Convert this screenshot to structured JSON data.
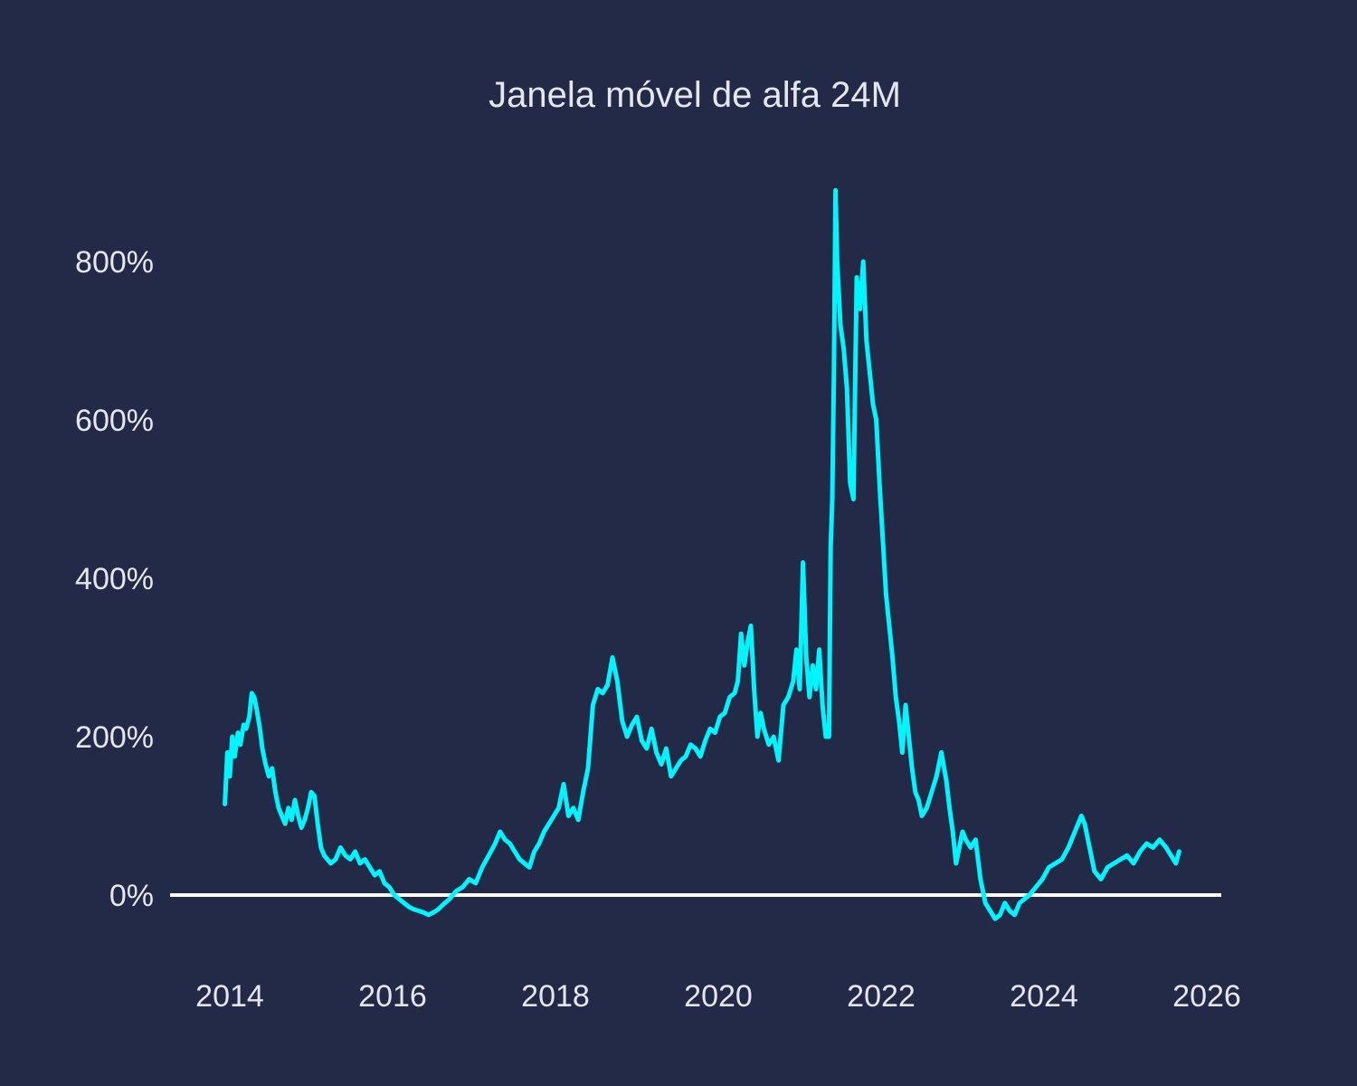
{
  "chart_data": {
    "type": "line",
    "title": "Janela móvel de alfa 24M",
    "xlabel": "",
    "ylabel": "",
    "grid": false,
    "legend": "none",
    "xlim": [
      2013.6,
      2026.1
    ],
    "ylim": [
      -100,
      950
    ],
    "x_ticks": [
      2014,
      2016,
      2018,
      2020,
      2022,
      2024,
      2026
    ],
    "x_tick_labels": [
      "2014",
      "2016",
      "2018",
      "2020",
      "2022",
      "2024",
      "2026"
    ],
    "y_ticks": [
      0,
      200,
      400,
      600,
      800
    ],
    "y_tick_labels": [
      "0%",
      "200%",
      "400%",
      "600%",
      "800%"
    ],
    "reference_line": {
      "y": 0,
      "color": "#ffffff"
    },
    "colors": {
      "background": "#222a47",
      "series": "#00f5ff",
      "text": "#e6e6ee"
    },
    "series": [
      {
        "color": "#00f5ff",
        "x": [
          2013.94,
          2013.97,
          2014.0,
          2014.03,
          2014.06,
          2014.1,
          2014.13,
          2014.17,
          2014.2,
          2014.24,
          2014.27,
          2014.3,
          2014.33,
          2014.37,
          2014.4,
          2014.44,
          2014.48,
          2014.52,
          2014.56,
          2014.6,
          2014.64,
          2014.68,
          2014.72,
          2014.76,
          2014.8,
          2014.84,
          2014.88,
          2014.92,
          2014.96,
          2015.0,
          2015.04,
          2015.08,
          2015.12,
          2015.16,
          2015.2,
          2015.24,
          2015.3,
          2015.36,
          2015.42,
          2015.48,
          2015.54,
          2015.6,
          2015.66,
          2015.72,
          2015.78,
          2015.84,
          2015.9,
          2015.96,
          2016.02,
          2016.08,
          2016.14,
          2016.2,
          2016.26,
          2016.32,
          2016.38,
          2016.44,
          2016.5,
          2016.56,
          2016.62,
          2016.7,
          2016.78,
          2016.86,
          2016.94,
          2017.02,
          2017.1,
          2017.18,
          2017.26,
          2017.32,
          2017.38,
          2017.44,
          2017.5,
          2017.56,
          2017.62,
          2017.68,
          2017.74,
          2017.8,
          2017.86,
          2017.92,
          2017.98,
          2018.04,
          2018.1,
          2018.16,
          2018.22,
          2018.28,
          2018.34,
          2018.4,
          2018.46,
          2018.52,
          2018.58,
          2018.64,
          2018.7,
          2018.76,
          2018.82,
          2018.88,
          2018.94,
          2019.0,
          2019.06,
          2019.12,
          2019.18,
          2019.24,
          2019.3,
          2019.36,
          2019.42,
          2019.48,
          2019.54,
          2019.6,
          2019.66,
          2019.72,
          2019.78,
          2019.84,
          2019.9,
          2019.96,
          2020.02,
          2020.08,
          2020.14,
          2020.2,
          2020.24,
          2020.28,
          2020.32,
          2020.36,
          2020.4,
          2020.44,
          2020.48,
          2020.52,
          2020.56,
          2020.62,
          2020.68,
          2020.74,
          2020.8,
          2020.86,
          2020.92,
          2020.96,
          2021.0,
          2021.04,
          2021.08,
          2021.12,
          2021.16,
          2021.2,
          2021.24,
          2021.28,
          2021.32,
          2021.36,
          2021.38,
          2021.4,
          2021.42,
          2021.44,
          2021.46,
          2021.5,
          2021.54,
          2021.58,
          2021.62,
          2021.66,
          2021.7,
          2021.74,
          2021.78,
          2021.82,
          2021.86,
          2021.9,
          2021.94,
          2021.98,
          2022.02,
          2022.06,
          2022.1,
          2022.14,
          2022.18,
          2022.22,
          2022.26,
          2022.3,
          2022.34,
          2022.38,
          2022.42,
          2022.46,
          2022.5,
          2022.56,
          2022.62,
          2022.68,
          2022.74,
          2022.8,
          2022.84,
          2022.88,
          2022.92,
          2022.96,
          2023.0,
          2023.04,
          2023.1,
          2023.16,
          2023.22,
          2023.28,
          2023.34,
          2023.4,
          2023.46,
          2023.52,
          2023.58,
          2023.64,
          2023.7,
          2023.76,
          2023.82,
          2023.9,
          2023.98,
          2024.06,
          2024.14,
          2024.22,
          2024.3,
          2024.38,
          2024.46,
          2024.5,
          2024.54,
          2024.58,
          2024.62,
          2024.7,
          2024.78,
          2024.86,
          2024.94,
          2025.02,
          2025.1,
          2025.18,
          2025.26,
          2025.34,
          2025.42,
          2025.5,
          2025.56,
          2025.62,
          2025.66
        ],
        "y": [
          115,
          180,
          150,
          200,
          175,
          205,
          190,
          215,
          210,
          225,
          255,
          250,
          235,
          210,
          185,
          165,
          150,
          160,
          130,
          110,
          100,
          90,
          110,
          95,
          120,
          100,
          85,
          95,
          110,
          130,
          125,
          90,
          60,
          50,
          45,
          40,
          45,
          60,
          50,
          45,
          55,
          40,
          45,
          35,
          25,
          30,
          15,
          10,
          0,
          -5,
          -10,
          -15,
          -18,
          -20,
          -22,
          -25,
          -22,
          -18,
          -12,
          -5,
          5,
          10,
          20,
          15,
          35,
          50,
          65,
          80,
          70,
          65,
          55,
          45,
          40,
          35,
          55,
          65,
          80,
          90,
          100,
          110,
          140,
          100,
          110,
          95,
          130,
          160,
          240,
          260,
          255,
          265,
          300,
          270,
          220,
          200,
          215,
          225,
          195,
          185,
          210,
          180,
          165,
          185,
          150,
          160,
          170,
          175,
          190,
          185,
          175,
          195,
          210,
          205,
          225,
          230,
          250,
          255,
          270,
          330,
          290,
          320,
          340,
          260,
          200,
          230,
          210,
          190,
          200,
          170,
          240,
          250,
          270,
          310,
          260,
          420,
          300,
          250,
          290,
          260,
          310,
          240,
          200,
          200,
          440,
          500,
          660,
          890,
          800,
          720,
          690,
          640,
          520,
          500,
          780,
          740,
          800,
          700,
          660,
          620,
          600,
          520,
          450,
          380,
          340,
          300,
          250,
          220,
          180,
          240,
          200,
          160,
          130,
          120,
          100,
          110,
          130,
          150,
          180,
          145,
          110,
          80,
          40,
          60,
          80,
          70,
          60,
          70,
          20,
          -10,
          -20,
          -30,
          -25,
          -10,
          -20,
          -25,
          -10,
          -5,
          0,
          10,
          20,
          35,
          40,
          45,
          60,
          80,
          100,
          90,
          70,
          50,
          30,
          20,
          35,
          40,
          45,
          50,
          40,
          55,
          65,
          60,
          70,
          60,
          50,
          40,
          55
        ]
      }
    ]
  }
}
